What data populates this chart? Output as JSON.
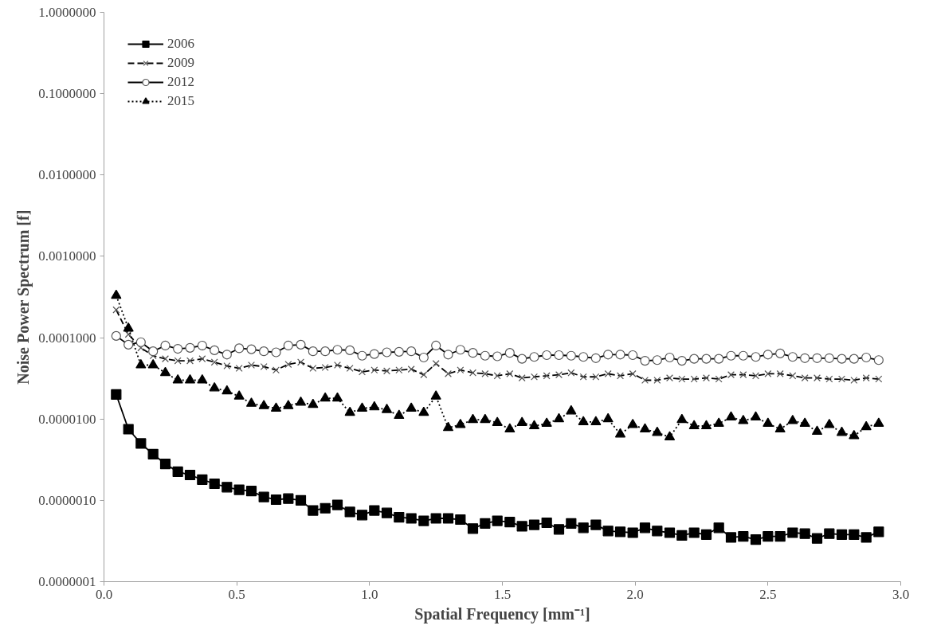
{
  "chart_data": {
    "type": "line",
    "xlabel": "Spatial Frequency [mm⁻¹]",
    "ylabel": "Noise Power Spectrum [f]",
    "log": "y",
    "grid": false,
    "legend": "top left",
    "x": [
      0.046,
      0.092,
      0.139,
      0.185,
      0.231,
      0.278,
      0.324,
      0.37,
      0.416,
      0.463,
      0.509,
      0.555,
      0.602,
      0.648,
      0.694,
      0.741,
      0.787,
      0.833,
      0.879,
      0.926,
      0.972,
      1.018,
      1.065,
      1.111,
      1.157,
      1.204,
      1.25,
      1.296,
      1.342,
      1.389,
      1.435,
      1.481,
      1.528,
      1.574,
      1.62,
      1.667,
      1.713,
      1.759,
      1.805,
      1.852,
      1.898,
      1.944,
      1.991,
      2.037,
      2.083,
      2.13,
      2.176,
      2.222,
      2.268,
      2.315,
      2.361,
      2.407,
      2.454,
      2.5,
      2.546,
      2.593,
      2.639,
      2.685,
      2.731,
      2.778,
      2.824,
      2.87,
      2.917
    ],
    "xlim": [
      0,
      3
    ],
    "xticks": [
      {
        "value": 0,
        "label": "0.0"
      },
      {
        "value": 0.5,
        "label": "0.5"
      },
      {
        "value": 1,
        "label": "1.0"
      },
      {
        "value": 1.5,
        "label": "1.5"
      },
      {
        "value": 2,
        "label": "2.0"
      },
      {
        "value": 2.5,
        "label": "2.5"
      },
      {
        "value": 3,
        "label": "3.0"
      }
    ],
    "ylim": [
      1e-07,
      1
    ],
    "yticks": [
      {
        "value": 1e-07,
        "label": "0.0000001"
      },
      {
        "value": 1e-06,
        "label": "0.0000010"
      },
      {
        "value": 1e-05,
        "label": "0.0000100"
      },
      {
        "value": 0.0001,
        "label": "0.0001000"
      },
      {
        "value": 0.001,
        "label": "0.0010000"
      },
      {
        "value": 0.01,
        "label": "0.0100000"
      },
      {
        "value": 0.1,
        "label": "0.1000000"
      },
      {
        "value": 1,
        "label": "1.0000000"
      }
    ],
    "series": [
      {
        "name": "2006",
        "color": "#000000",
        "marker": "square",
        "line_style": "solid",
        "values": [
          2e-05,
          7.5e-06,
          5e-06,
          3.7e-06,
          2.8e-06,
          2.25e-06,
          2.05e-06,
          1.8e-06,
          1.6e-06,
          1.45e-06,
          1.35e-06,
          1.3e-06,
          1.1e-06,
          1.02e-06,
          1.05e-06,
          1e-06,
          7.5e-07,
          8e-07,
          8.8e-07,
          7.2e-07,
          6.6e-07,
          7.5e-07,
          7e-07,
          6.2e-07,
          6e-07,
          5.6e-07,
          6e-07,
          6e-07,
          5.8e-07,
          4.5e-07,
          5.2e-07,
          5.6e-07,
          5.4e-07,
          4.8e-07,
          5e-07,
          5.3e-07,
          4.4e-07,
          5.2e-07,
          4.6e-07,
          5e-07,
          4.2e-07,
          4.1e-07,
          4e-07,
          4.6e-07,
          4.2e-07,
          4e-07,
          3.7e-07,
          4e-07,
          3.8e-07,
          4.6e-07,
          3.5e-07,
          3.6e-07,
          3.3e-07,
          3.6e-07,
          3.6e-07,
          4e-07,
          3.9e-07,
          3.4e-07,
          3.9e-07,
          3.8e-07,
          3.8e-07,
          3.5e-07,
          4.1e-07
        ]
      },
      {
        "name": "2009",
        "color": "#000000",
        "marker": "cross",
        "line_style": "dashed",
        "values": [
          0.00022,
          0.00011,
          7.5e-05,
          6e-05,
          5.5e-05,
          5.2e-05,
          5.2e-05,
          5.5e-05,
          5e-05,
          4.5e-05,
          4.2e-05,
          4.6e-05,
          4.4e-05,
          4e-05,
          4.7e-05,
          5e-05,
          4.2e-05,
          4.3e-05,
          4.6e-05,
          4.2e-05,
          3.8e-05,
          4e-05,
          3.9e-05,
          4e-05,
          4.1e-05,
          3.5e-05,
          4.8e-05,
          3.6e-05,
          4e-05,
          3.7e-05,
          3.6e-05,
          3.4e-05,
          3.6e-05,
          3.2e-05,
          3.3e-05,
          3.4e-05,
          3.5e-05,
          3.7e-05,
          3.3e-05,
          3.3e-05,
          3.6e-05,
          3.4e-05,
          3.6e-05,
          3e-05,
          3e-05,
          3.2e-05,
          3.1e-05,
          3.1e-05,
          3.2e-05,
          3.1e-05,
          3.5e-05,
          3.5e-05,
          3.4e-05,
          3.6e-05,
          3.6e-05,
          3.4e-05,
          3.2e-05,
          3.2e-05,
          3.1e-05,
          3.1e-05,
          3e-05,
          3.2e-05,
          3.1e-05
        ]
      },
      {
        "name": "2012",
        "color": "#000000",
        "marker": "circle",
        "line_style": "solid",
        "values": [
          0.000105,
          8.2e-05,
          8.8e-05,
          6.8e-05,
          8e-05,
          7.3e-05,
          7.5e-05,
          8e-05,
          7e-05,
          6.2e-05,
          7.4e-05,
          7.2e-05,
          6.8e-05,
          6.6e-05,
          8e-05,
          8.2e-05,
          6.8e-05,
          6.8e-05,
          7.1e-05,
          7e-05,
          6e-05,
          6.3e-05,
          6.6e-05,
          6.7e-05,
          6.8e-05,
          5.7e-05,
          8e-05,
          6.2e-05,
          7.1e-05,
          6.5e-05,
          6e-05,
          5.9e-05,
          6.5e-05,
          5.5e-05,
          5.8e-05,
          6.1e-05,
          6.1e-05,
          6e-05,
          5.8e-05,
          5.6e-05,
          6.2e-05,
          6.2e-05,
          6.1e-05,
          5.2e-05,
          5.3e-05,
          5.7e-05,
          5.2e-05,
          5.5e-05,
          5.5e-05,
          5.5e-05,
          6e-05,
          6e-05,
          5.8e-05,
          6.2e-05,
          6.4e-05,
          5.8e-05,
          5.6e-05,
          5.6e-05,
          5.6e-05,
          5.5e-05,
          5.5e-05,
          5.7e-05,
          5.3e-05
        ]
      },
      {
        "name": "2015",
        "color": "#000000",
        "marker": "triangle",
        "line_style": "dotted",
        "values": [
          0.00033,
          0.00013,
          4.6e-05,
          4.6e-05,
          3.7e-05,
          3e-05,
          3e-05,
          3e-05,
          2.4e-05,
          2.2e-05,
          1.9e-05,
          1.55e-05,
          1.45e-05,
          1.35e-05,
          1.45e-05,
          1.6e-05,
          1.5e-05,
          1.8e-05,
          1.8e-05,
          1.2e-05,
          1.35e-05,
          1.4e-05,
          1.3e-05,
          1.1e-05,
          1.35e-05,
          1.2e-05,
          1.9e-05,
          7.8e-06,
          8.5e-06,
          9.8e-06,
          9.8e-06,
          9e-06,
          7.5e-06,
          9e-06,
          8.2e-06,
          8.8e-06,
          1e-05,
          1.25e-05,
          9.2e-06,
          9.2e-06,
          1e-05,
          6.5e-06,
          8.5e-06,
          7.5e-06,
          6.8e-06,
          6e-06,
          9.8e-06,
          8.2e-06,
          8.2e-06,
          8.8e-06,
          1.05e-05,
          9.5e-06,
          1.05e-05,
          8.8e-06,
          7.5e-06,
          9.5e-06,
          8.8e-06,
          7e-06,
          8.5e-06,
          6.8e-06,
          6.2e-06,
          8e-06,
          8.8e-06
        ]
      }
    ]
  }
}
